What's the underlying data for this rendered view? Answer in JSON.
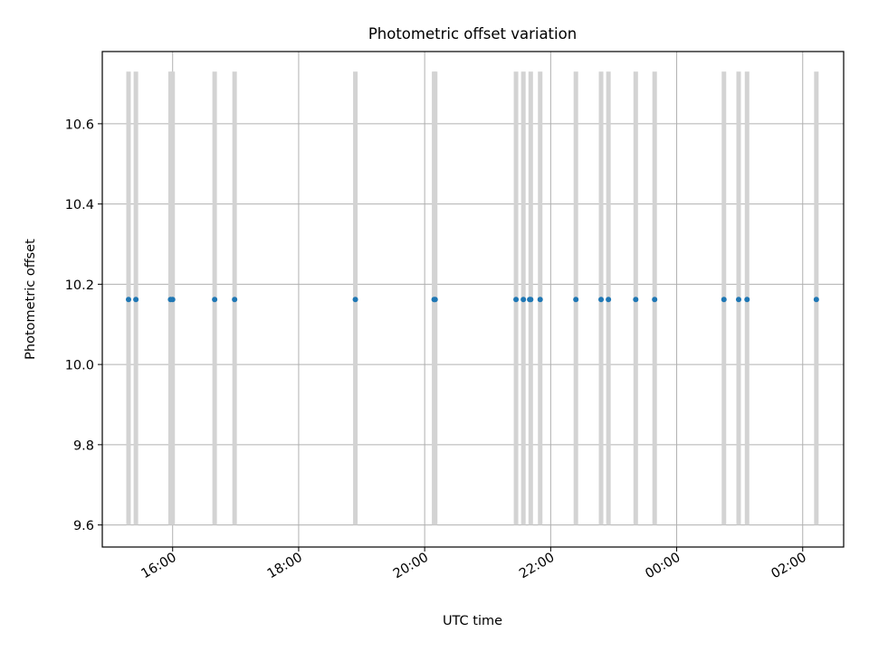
{
  "chart_data": {
    "type": "scatter",
    "title": "Photometric offset variation",
    "xlabel": "UTC time",
    "ylabel": "Photometric offset",
    "x_axis": "time",
    "xlim": [
      "2023-01-01T14:53",
      "2023-01-02T02:39"
    ],
    "ylim": [
      9.545,
      10.78
    ],
    "x_ticks": [
      {
        "t": "2023-01-01T16:00",
        "label": "16:00"
      },
      {
        "t": "2023-01-01T18:00",
        "label": "18:00"
      },
      {
        "t": "2023-01-01T20:00",
        "label": "20:00"
      },
      {
        "t": "2023-01-01T22:00",
        "label": "22:00"
      },
      {
        "t": "2023-01-02T00:00",
        "label": "00:00"
      },
      {
        "t": "2023-01-02T02:00",
        "label": "02:00"
      }
    ],
    "y_ticks": [
      {
        "value": 9.6,
        "label": "9.6"
      },
      {
        "value": 9.8,
        "label": "9.8"
      },
      {
        "value": 10.0,
        "label": "10.0"
      },
      {
        "value": 10.2,
        "label": "10.2"
      },
      {
        "value": 10.4,
        "label": "10.4"
      },
      {
        "value": 10.6,
        "label": "10.6"
      }
    ],
    "grid": true,
    "point_color": "#1f77b4",
    "band_color": "#d3d3d3",
    "band_range": [
      9.6,
      10.73
    ],
    "series": [
      {
        "times": [
          "2023-01-01T15:18",
          "2023-01-01T15:25",
          "2023-01-01T15:58",
          "2023-01-01T16:00",
          "2023-01-01T16:40",
          "2023-01-01T16:59",
          "2023-01-01T18:54",
          "2023-01-01T20:09",
          "2023-01-01T20:10",
          "2023-01-01T21:27",
          "2023-01-01T21:34",
          "2023-01-01T21:40",
          "2023-01-01T21:41",
          "2023-01-01T21:50",
          "2023-01-01T22:24",
          "2023-01-01T22:48",
          "2023-01-01T22:55",
          "2023-01-01T23:21",
          "2023-01-01T23:39",
          "2023-01-02T00:45",
          "2023-01-02T00:59",
          "2023-01-02T01:07",
          "2023-01-02T02:13"
        ],
        "values": [
          10.162,
          10.162,
          10.162,
          10.162,
          10.162,
          10.162,
          10.162,
          10.162,
          10.162,
          10.162,
          10.162,
          10.162,
          10.162,
          10.162,
          10.162,
          10.162,
          10.162,
          10.162,
          10.162,
          10.162,
          10.162,
          10.162,
          10.162
        ]
      }
    ],
    "bands": [
      "2023-01-01T15:18",
      "2023-01-01T15:25",
      "2023-01-01T15:58",
      "2023-01-01T16:00",
      "2023-01-01T16:40",
      "2023-01-01T16:59",
      "2023-01-01T18:54",
      "2023-01-01T20:09",
      "2023-01-01T20:10",
      "2023-01-01T21:27",
      "2023-01-01T21:34",
      "2023-01-01T21:41",
      "2023-01-01T21:50",
      "2023-01-01T22:24",
      "2023-01-01T22:48",
      "2023-01-01T22:55",
      "2023-01-01T23:21",
      "2023-01-01T23:39",
      "2023-01-02T00:45",
      "2023-01-02T00:59",
      "2023-01-02T01:07",
      "2023-01-02T02:13"
    ]
  }
}
